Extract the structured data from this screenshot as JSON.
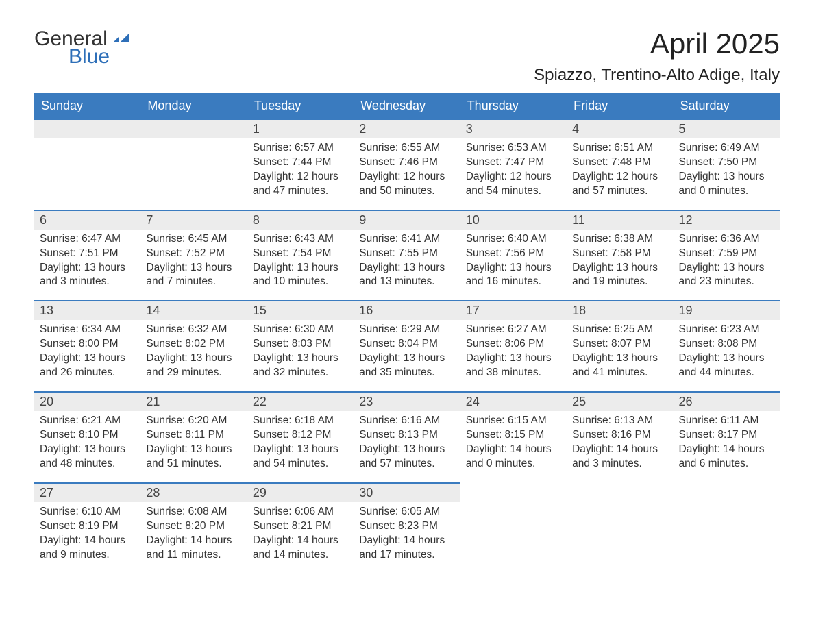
{
  "logo": {
    "text_general": "General",
    "text_blue": "Blue",
    "icon_color": "#2e6fb8"
  },
  "title": "April 2025",
  "location": "Spiazzo, Trentino-Alto Adige, Italy",
  "header_bg": "#3a7bbf",
  "header_text_color": "#ffffff",
  "day_number_bg": "#ececec",
  "border_color": "#3a7bbf",
  "weekdays": [
    "Sunday",
    "Monday",
    "Tuesday",
    "Wednesday",
    "Thursday",
    "Friday",
    "Saturday"
  ],
  "weeks": [
    [
      null,
      null,
      {
        "n": "1",
        "sunrise": "6:57 AM",
        "sunset": "7:44 PM",
        "daylight": "12 hours and 47 minutes."
      },
      {
        "n": "2",
        "sunrise": "6:55 AM",
        "sunset": "7:46 PM",
        "daylight": "12 hours and 50 minutes."
      },
      {
        "n": "3",
        "sunrise": "6:53 AM",
        "sunset": "7:47 PM",
        "daylight": "12 hours and 54 minutes."
      },
      {
        "n": "4",
        "sunrise": "6:51 AM",
        "sunset": "7:48 PM",
        "daylight": "12 hours and 57 minutes."
      },
      {
        "n": "5",
        "sunrise": "6:49 AM",
        "sunset": "7:50 PM",
        "daylight": "13 hours and 0 minutes."
      }
    ],
    [
      {
        "n": "6",
        "sunrise": "6:47 AM",
        "sunset": "7:51 PM",
        "daylight": "13 hours and 3 minutes."
      },
      {
        "n": "7",
        "sunrise": "6:45 AM",
        "sunset": "7:52 PM",
        "daylight": "13 hours and 7 minutes."
      },
      {
        "n": "8",
        "sunrise": "6:43 AM",
        "sunset": "7:54 PM",
        "daylight": "13 hours and 10 minutes."
      },
      {
        "n": "9",
        "sunrise": "6:41 AM",
        "sunset": "7:55 PM",
        "daylight": "13 hours and 13 minutes."
      },
      {
        "n": "10",
        "sunrise": "6:40 AM",
        "sunset": "7:56 PM",
        "daylight": "13 hours and 16 minutes."
      },
      {
        "n": "11",
        "sunrise": "6:38 AM",
        "sunset": "7:58 PM",
        "daylight": "13 hours and 19 minutes."
      },
      {
        "n": "12",
        "sunrise": "6:36 AM",
        "sunset": "7:59 PM",
        "daylight": "13 hours and 23 minutes."
      }
    ],
    [
      {
        "n": "13",
        "sunrise": "6:34 AM",
        "sunset": "8:00 PM",
        "daylight": "13 hours and 26 minutes."
      },
      {
        "n": "14",
        "sunrise": "6:32 AM",
        "sunset": "8:02 PM",
        "daylight": "13 hours and 29 minutes."
      },
      {
        "n": "15",
        "sunrise": "6:30 AM",
        "sunset": "8:03 PM",
        "daylight": "13 hours and 32 minutes."
      },
      {
        "n": "16",
        "sunrise": "6:29 AM",
        "sunset": "8:04 PM",
        "daylight": "13 hours and 35 minutes."
      },
      {
        "n": "17",
        "sunrise": "6:27 AM",
        "sunset": "8:06 PM",
        "daylight": "13 hours and 38 minutes."
      },
      {
        "n": "18",
        "sunrise": "6:25 AM",
        "sunset": "8:07 PM",
        "daylight": "13 hours and 41 minutes."
      },
      {
        "n": "19",
        "sunrise": "6:23 AM",
        "sunset": "8:08 PM",
        "daylight": "13 hours and 44 minutes."
      }
    ],
    [
      {
        "n": "20",
        "sunrise": "6:21 AM",
        "sunset": "8:10 PM",
        "daylight": "13 hours and 48 minutes."
      },
      {
        "n": "21",
        "sunrise": "6:20 AM",
        "sunset": "8:11 PM",
        "daylight": "13 hours and 51 minutes."
      },
      {
        "n": "22",
        "sunrise": "6:18 AM",
        "sunset": "8:12 PM",
        "daylight": "13 hours and 54 minutes."
      },
      {
        "n": "23",
        "sunrise": "6:16 AM",
        "sunset": "8:13 PM",
        "daylight": "13 hours and 57 minutes."
      },
      {
        "n": "24",
        "sunrise": "6:15 AM",
        "sunset": "8:15 PM",
        "daylight": "14 hours and 0 minutes."
      },
      {
        "n": "25",
        "sunrise": "6:13 AM",
        "sunset": "8:16 PM",
        "daylight": "14 hours and 3 minutes."
      },
      {
        "n": "26",
        "sunrise": "6:11 AM",
        "sunset": "8:17 PM",
        "daylight": "14 hours and 6 minutes."
      }
    ],
    [
      {
        "n": "27",
        "sunrise": "6:10 AM",
        "sunset": "8:19 PM",
        "daylight": "14 hours and 9 minutes."
      },
      {
        "n": "28",
        "sunrise": "6:08 AM",
        "sunset": "8:20 PM",
        "daylight": "14 hours and 11 minutes."
      },
      {
        "n": "29",
        "sunrise": "6:06 AM",
        "sunset": "8:21 PM",
        "daylight": "14 hours and 14 minutes."
      },
      {
        "n": "30",
        "sunrise": "6:05 AM",
        "sunset": "8:23 PM",
        "daylight": "14 hours and 17 minutes."
      },
      null,
      null,
      null
    ]
  ],
  "labels": {
    "sunrise": "Sunrise:",
    "sunset": "Sunset:",
    "daylight": "Daylight:"
  }
}
